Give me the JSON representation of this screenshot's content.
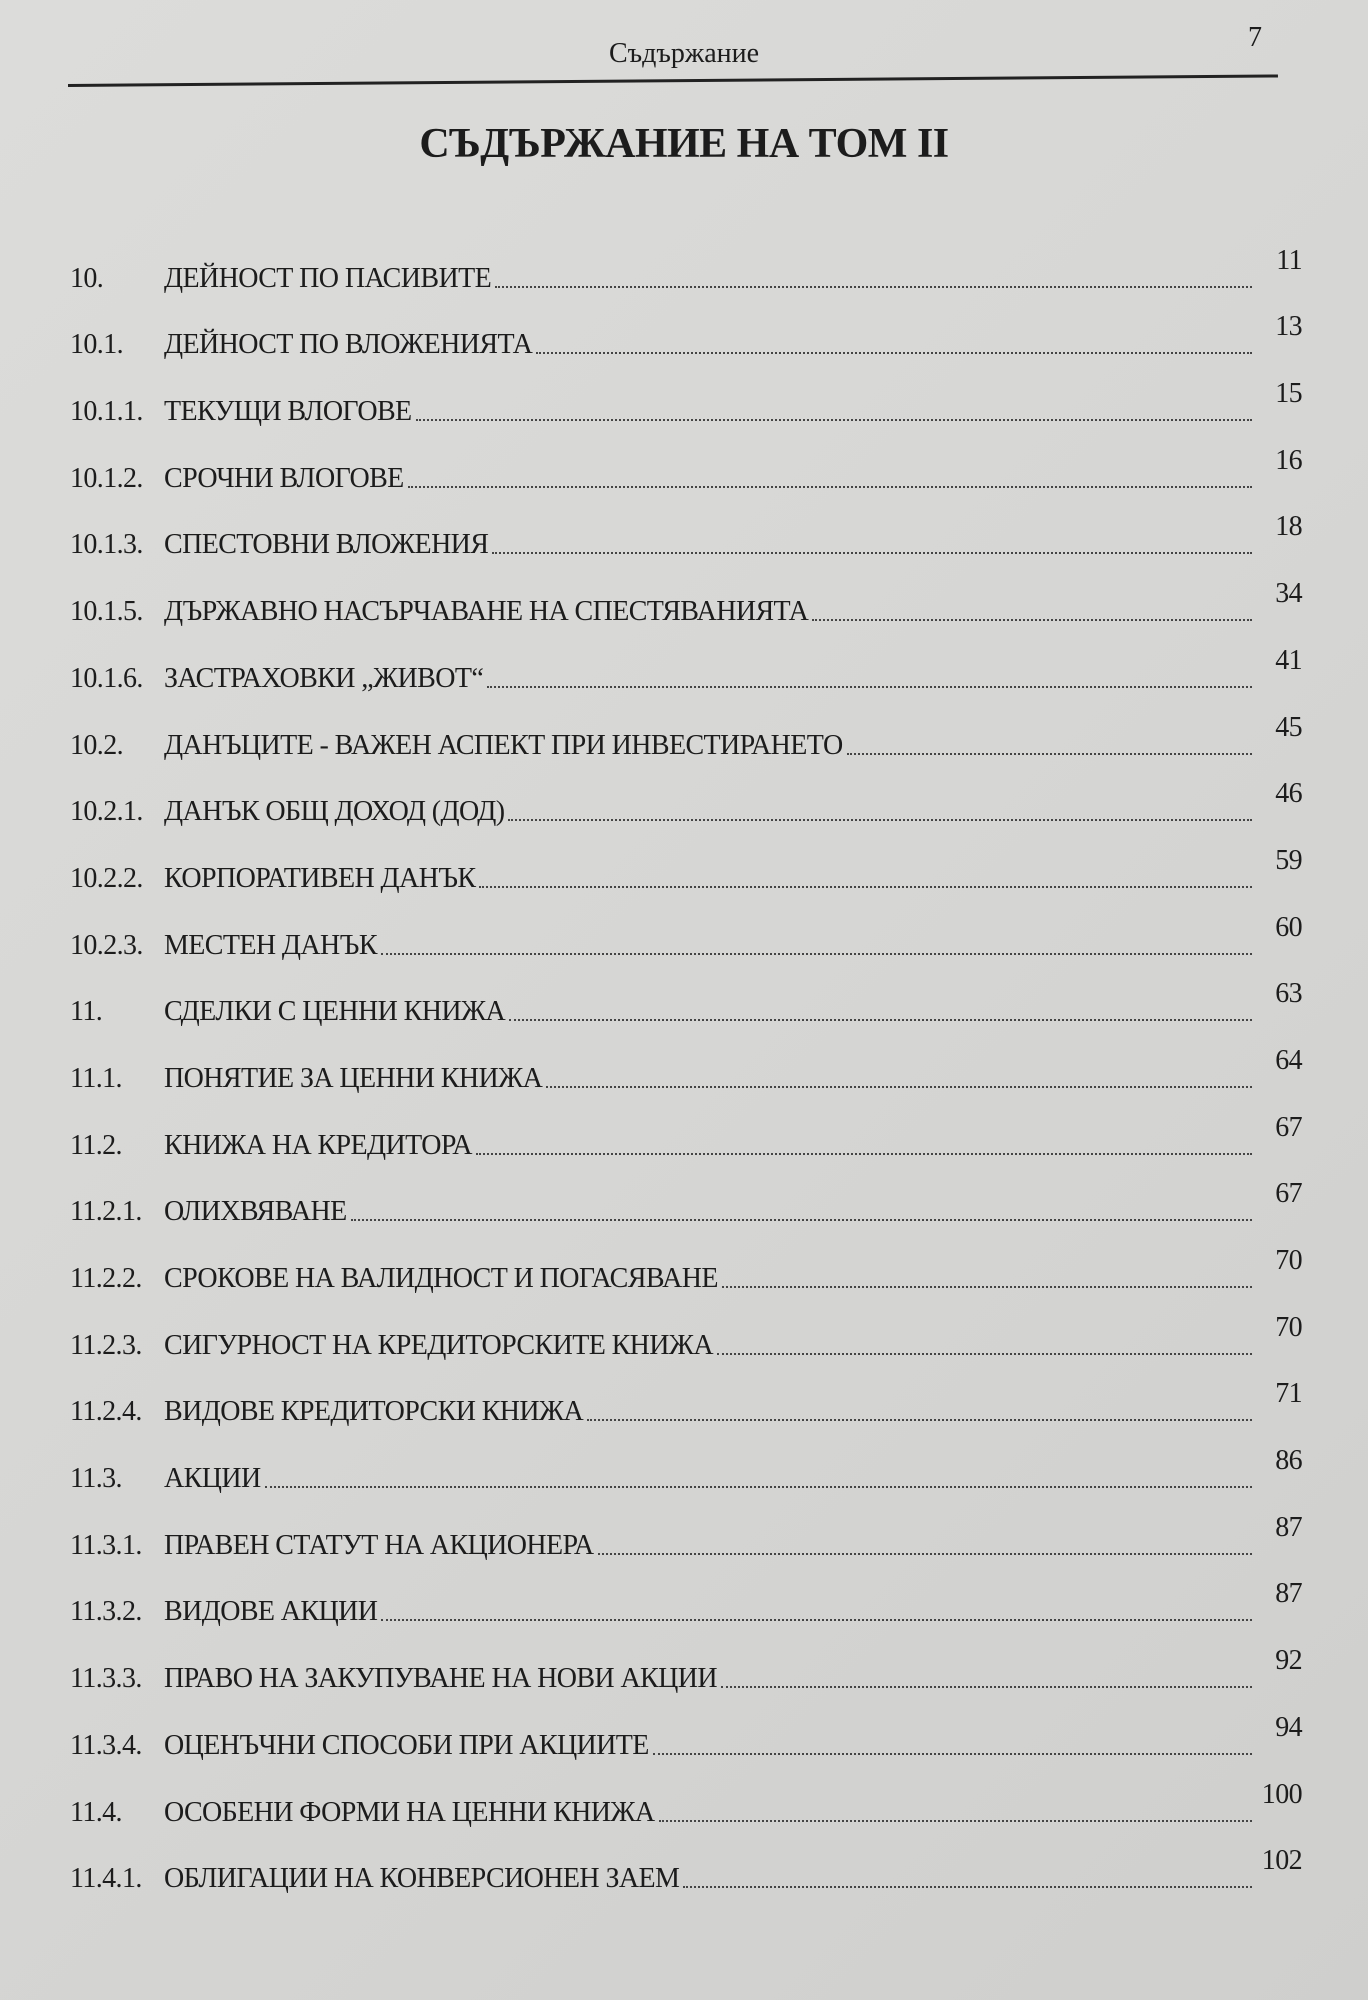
{
  "header": {
    "running_title": "Съдържание",
    "page_number": "7"
  },
  "title": "СЪДЪРЖАНИЕ НА ТОМ II",
  "entries": [
    {
      "num": "10.",
      "label": "ДЕЙНОСТ ПО ПАСИВИТЕ",
      "page": "11"
    },
    {
      "num": "10.1.",
      "label": "ДЕЙНОСТ  ПО  ВЛОЖЕНИЯТА",
      "page": "13"
    },
    {
      "num": "10.1.1.",
      "label": "ТЕКУЩИ  ВЛОГОВЕ",
      "page": "15"
    },
    {
      "num": "10.1.2.",
      "label": "СРОЧНИ  ВЛОГОВЕ",
      "page": "16"
    },
    {
      "num": "10.1.3.",
      "label": "СПЕСТОВНИ  ВЛОЖЕНИЯ",
      "page": "18"
    },
    {
      "num": "10.1.5.",
      "label": "ДЪРЖАВНО НАСЪРЧАВАНЕ НА СПЕСТЯВАНИЯТА",
      "page": "34"
    },
    {
      "num": "10.1.6.",
      "label": "ЗАСТРАХОВКИ „ЖИВОТ“",
      "page": "41"
    },
    {
      "num": "10.2.",
      "label": "ДАНЪЦИТЕ - ВАЖЕН АСПЕКТ ПРИ ИНВЕСТИРАНЕТО",
      "page": "45"
    },
    {
      "num": "10.2.1.",
      "label": "ДАНЪК ОБЩ ДОХОД (ДОД)",
      "page": "46"
    },
    {
      "num": "10.2.2.",
      "label": "КОРПОРАТИВЕН ДАНЪК",
      "page": "59"
    },
    {
      "num": "10.2.3.",
      "label": "МЕСТЕН ДАНЪК",
      "page": "60"
    },
    {
      "num": "11.",
      "label": "СДЕЛКИ С ЦЕННИ КНИЖА",
      "page": "63"
    },
    {
      "num": "11.1.",
      "label": "ПОНЯТИЕ ЗА ЦЕННИ КНИЖА",
      "page": "64"
    },
    {
      "num": "11.2.",
      "label": "КНИЖА НА КРЕДИТОРА",
      "page": "67"
    },
    {
      "num": "11.2.1.",
      "label": "ОЛИХВЯВАНЕ",
      "page": "67"
    },
    {
      "num": "11.2.2.",
      "label": "СРОКОВЕ НА ВАЛИДНОСТ И ПОГАСЯВАНЕ",
      "page": "70"
    },
    {
      "num": "11.2.3.",
      "label": "СИГУРНОСТ НА КРЕДИТОРСКИТЕ КНИЖА",
      "page": "70"
    },
    {
      "num": "11.2.4.",
      "label": "ВИДОВЕ КРЕДИТОРСКИ КНИЖА",
      "page": "71"
    },
    {
      "num": "11.3.",
      "label": "АКЦИИ",
      "page": "86"
    },
    {
      "num": "11.3.1.",
      "label": "ПРАВЕН СТАТУТ НА АКЦИОНЕРА",
      "page": "87"
    },
    {
      "num": "11.3.2.",
      "label": "ВИДОВЕ АКЦИИ",
      "page": "87"
    },
    {
      "num": "11.3.3.",
      "label": "ПРАВО НА ЗАКУПУВАНЕ НА НОВИ АКЦИИ",
      "page": "92"
    },
    {
      "num": "11.3.4.",
      "label": "ОЦЕНЪЧНИ СПОСОБИ ПРИ АКЦИИТЕ",
      "page": "94"
    },
    {
      "num": "11.4.",
      "label": "ОСОБЕНИ ФОРМИ НА ЦЕННИ КНИЖА",
      "page": "100"
    },
    {
      "num": "11.4.1.",
      "label": "ОБЛИГАЦИИ НА КОНВЕРСИОНЕН ЗАЕМ",
      "page": "102"
    }
  ]
}
